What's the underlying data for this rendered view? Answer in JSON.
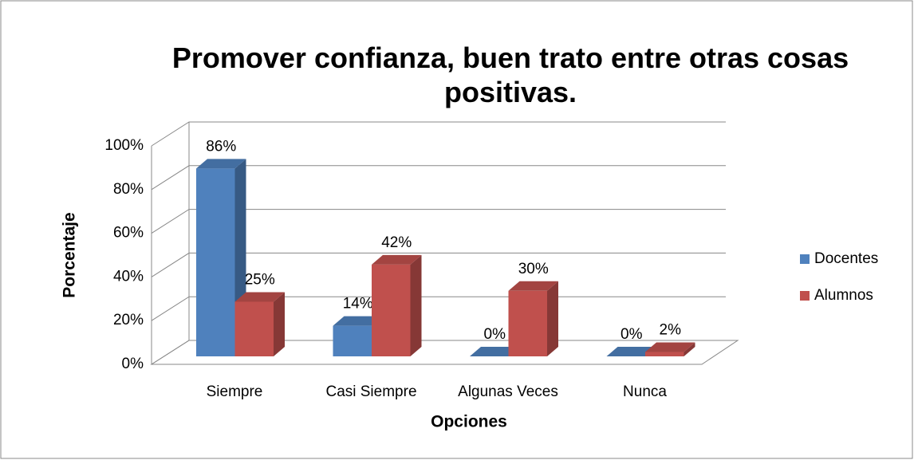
{
  "chart_data": {
    "type": "bar3d",
    "title": "Promover confianza, buen trato entre otras cosas positivas.",
    "x_label": "Opciones",
    "y_label": "Porcentaje",
    "categories": [
      "Siempre",
      "Casi Siempre",
      "Algunas Veces",
      "Nunca"
    ],
    "series": [
      {
        "name": "Docentes",
        "color": "#4f81bd",
        "values": [
          86,
          14,
          0,
          0
        ],
        "value_labels": [
          "86%",
          "14%",
          "0%",
          "0%"
        ]
      },
      {
        "name": "Alumnos",
        "color": "#c0504d",
        "values": [
          25,
          42,
          30,
          2
        ],
        "value_labels": [
          "25%",
          "42%",
          "30%",
          "2%"
        ]
      }
    ],
    "ylim": [
      0,
      100
    ],
    "yticks": [
      {
        "value": 0,
        "label": "0%"
      },
      {
        "value": 20,
        "label": "20%"
      },
      {
        "value": 40,
        "label": "40%"
      },
      {
        "value": 60,
        "label": "60%"
      },
      {
        "value": 80,
        "label": "80%"
      },
      {
        "value": 100,
        "label": "100%"
      }
    ],
    "grid": true,
    "legend": "right"
  }
}
